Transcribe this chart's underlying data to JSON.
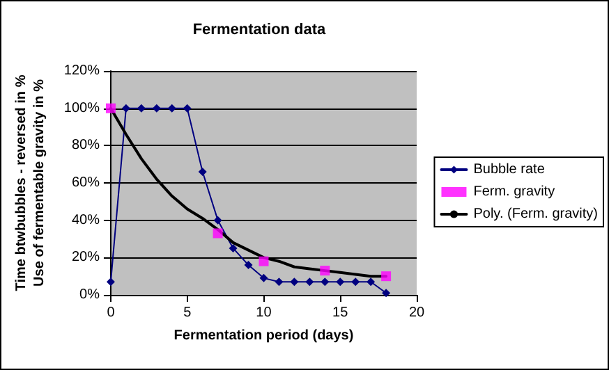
{
  "chart_data": {
    "type": "line",
    "title": "Fermentation data",
    "xlabel": "Fermentation period (days)",
    "ylabel": "Time btwbubbles - reversed in %\nUse of fermentable gravity in %",
    "xlim": [
      0,
      20
    ],
    "xticks": [
      0,
      5,
      10,
      15,
      20
    ],
    "ylim": [
      0,
      120
    ],
    "yticks": [
      {
        "value": 0,
        "label": "0%"
      },
      {
        "value": 20,
        "label": "20%"
      },
      {
        "value": 40,
        "label": "40%"
      },
      {
        "value": 60,
        "label": "60%"
      },
      {
        "value": 80,
        "label": "80%"
      },
      {
        "value": 100,
        "label": "100%"
      },
      {
        "value": 120,
        "label": "120%"
      }
    ],
    "grid": "y",
    "legend": "right",
    "series": [
      {
        "name": "Bubble rate",
        "color": "#000080",
        "marker": "diamond",
        "x": [
          0,
          1,
          2,
          3,
          4,
          5,
          6,
          7,
          8,
          9,
          10,
          11,
          12,
          13,
          14,
          15,
          16,
          17,
          18
        ],
        "values": [
          7,
          100,
          100,
          100,
          100,
          100,
          66,
          40,
          25,
          16,
          9,
          7,
          7,
          7,
          7,
          7,
          7,
          7,
          1
        ]
      },
      {
        "name": "Ferm. gravity",
        "type": "scatter",
        "color": "#ff00ff",
        "marker": "square",
        "x": [
          0,
          7,
          10,
          14,
          18
        ],
        "values": [
          100,
          33,
          18,
          13,
          10
        ]
      },
      {
        "name": "Poly. (Ferm. gravity)",
        "color": "#000000",
        "marker": "none",
        "x": [
          0,
          1,
          2,
          3,
          4,
          5,
          6,
          7,
          8,
          9,
          10,
          11,
          12,
          13,
          14,
          15,
          16,
          17,
          18
        ],
        "values": [
          100,
          86,
          73,
          62,
          53,
          46,
          41,
          35,
          28,
          24,
          20,
          18,
          15,
          14,
          13,
          12,
          11,
          10,
          10
        ]
      }
    ]
  }
}
